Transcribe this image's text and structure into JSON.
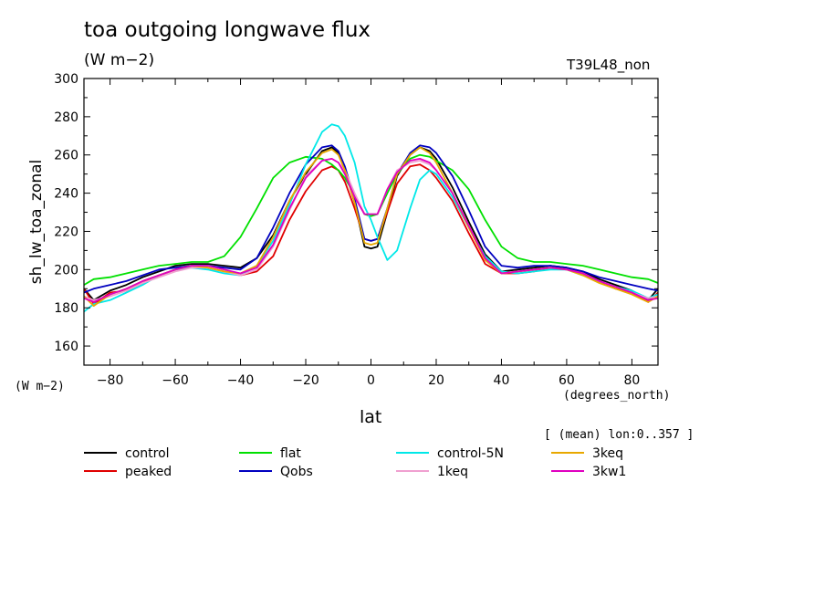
{
  "header": {
    "title": "toa outgoing longwave flux",
    "units": "(W m−2)",
    "run_id": "T39L48_non"
  },
  "axes": {
    "y_label": "sh_lw_toa_zonal",
    "y_units": "(W m−2)",
    "x_label": "lat",
    "x_units": "(degrees_north)",
    "mean_note": "[ (mean) lon:0..357 ]"
  },
  "chart_data": {
    "type": "line",
    "title": "toa outgoing longwave flux",
    "xlabel": "lat",
    "ylabel": "sh_lw_toa_zonal",
    "xlim": [
      -88,
      88
    ],
    "ylim": [
      150,
      300
    ],
    "x_ticks": [
      -80,
      -60,
      -40,
      -20,
      0,
      20,
      40,
      60,
      80
    ],
    "y_ticks": [
      160,
      180,
      200,
      220,
      240,
      260,
      280,
      300
    ],
    "x_tick_labels": [
      "−80",
      "−60",
      "−40",
      "−20",
      "0",
      "20",
      "40",
      "60",
      "80"
    ],
    "y_tick_labels": [
      "160",
      "180",
      "200",
      "220",
      "240",
      "260",
      "280",
      "300"
    ],
    "grid": false,
    "legend_position": "bottom",
    "series": [
      {
        "name": "control",
        "color": "#000000",
        "x": [
          -88,
          -85,
          -80,
          -75,
          -70,
          -65,
          -60,
          -55,
          -50,
          -45,
          -40,
          -35,
          -30,
          -25,
          -20,
          -15,
          -12,
          -10,
          -8,
          -5,
          -2,
          0,
          2,
          5,
          8,
          12,
          15,
          18,
          20,
          25,
          30,
          35,
          40,
          45,
          50,
          55,
          60,
          65,
          70,
          75,
          80,
          85,
          88
        ],
        "y": [
          190,
          184,
          189,
          192,
          196,
          199,
          202,
          203,
          203,
          202,
          201,
          206,
          218,
          236,
          250,
          262,
          264,
          261,
          252,
          235,
          212,
          211,
          212,
          230,
          249,
          260,
          264,
          262,
          258,
          243,
          225,
          208,
          199,
          200,
          201,
          202,
          201,
          199,
          195,
          192,
          189,
          184,
          190
        ]
      },
      {
        "name": "peaked",
        "color": "#e00000",
        "x": [
          -88,
          -85,
          -80,
          -75,
          -70,
          -65,
          -60,
          -55,
          -50,
          -45,
          -40,
          -35,
          -30,
          -25,
          -20,
          -15,
          -12,
          -10,
          -8,
          -5,
          -2,
          0,
          2,
          5,
          8,
          12,
          15,
          18,
          20,
          25,
          30,
          35,
          40,
          45,
          50,
          55,
          60,
          65,
          70,
          75,
          80,
          85,
          88
        ],
        "y": [
          190,
          182,
          188,
          189,
          193,
          197,
          200,
          202,
          201,
          199,
          197,
          199,
          207,
          226,
          241,
          252,
          254,
          252,
          246,
          232,
          216,
          215,
          216,
          230,
          245,
          254,
          255,
          252,
          248,
          236,
          219,
          203,
          198,
          198,
          199,
          201,
          201,
          198,
          194,
          190,
          188,
          183,
          188
        ]
      },
      {
        "name": "flat",
        "color": "#00e000",
        "x": [
          -88,
          -85,
          -80,
          -75,
          -70,
          -65,
          -60,
          -55,
          -50,
          -45,
          -40,
          -35,
          -30,
          -25,
          -20,
          -15,
          -12,
          -10,
          -8,
          -5,
          -2,
          0,
          2,
          5,
          8,
          12,
          15,
          18,
          20,
          25,
          30,
          35,
          40,
          45,
          50,
          55,
          60,
          65,
          70,
          75,
          80,
          85,
          88
        ],
        "y": [
          192,
          195,
          196,
          198,
          200,
          202,
          203,
          204,
          204,
          207,
          217,
          232,
          248,
          256,
          259,
          258,
          255,
          252,
          248,
          239,
          229,
          228,
          229,
          240,
          250,
          258,
          260,
          259,
          257,
          252,
          242,
          226,
          212,
          206,
          204,
          204,
          203,
          202,
          200,
          198,
          196,
          195,
          193
        ]
      },
      {
        "name": "Qobs",
        "color": "#0000c0",
        "x": [
          -88,
          -85,
          -80,
          -75,
          -70,
          -65,
          -60,
          -55,
          -50,
          -45,
          -40,
          -35,
          -30,
          -25,
          -20,
          -15,
          -12,
          -10,
          -8,
          -5,
          -2,
          0,
          2,
          5,
          8,
          12,
          15,
          18,
          20,
          25,
          30,
          35,
          40,
          45,
          50,
          55,
          60,
          65,
          70,
          75,
          80,
          85,
          88
        ],
        "y": [
          188,
          190,
          192,
          194,
          197,
          200,
          201,
          202,
          202,
          201,
          200,
          206,
          222,
          240,
          255,
          264,
          265,
          262,
          254,
          237,
          216,
          215,
          216,
          232,
          250,
          261,
          265,
          264,
          261,
          249,
          231,
          212,
          202,
          201,
          202,
          202,
          201,
          199,
          196,
          194,
          192,
          190,
          189
        ]
      },
      {
        "name": "control-5N",
        "color": "#00e8e8",
        "x": [
          -88,
          -85,
          -80,
          -75,
          -70,
          -65,
          -60,
          -55,
          -50,
          -45,
          -40,
          -35,
          -30,
          -25,
          -20,
          -15,
          -12,
          -10,
          -8,
          -5,
          -2,
          0,
          2,
          5,
          8,
          12,
          15,
          18,
          20,
          25,
          30,
          35,
          40,
          45,
          50,
          55,
          60,
          65,
          70,
          75,
          80,
          85,
          88
        ],
        "y": [
          178,
          182,
          184,
          188,
          192,
          197,
          200,
          201,
          200,
          198,
          197,
          202,
          215,
          234,
          255,
          272,
          276,
          275,
          270,
          256,
          233,
          226,
          217,
          205,
          210,
          232,
          247,
          252,
          250,
          238,
          222,
          207,
          199,
          198,
          199,
          200,
          200,
          197,
          194,
          191,
          189,
          185,
          187
        ]
      },
      {
        "name": "1keq",
        "color": "#f0a0d0",
        "x": [
          -88,
          -85,
          -80,
          -75,
          -70,
          -65,
          -60,
          -55,
          -50,
          -45,
          -40,
          -35,
          -30,
          -25,
          -20,
          -15,
          -12,
          -10,
          -8,
          -5,
          -2,
          0,
          2,
          5,
          8,
          12,
          15,
          18,
          20,
          25,
          30,
          35,
          40,
          45,
          50,
          55,
          60,
          65,
          70,
          75,
          80,
          85,
          88
        ],
        "y": [
          186,
          184,
          186,
          189,
          193,
          196,
          199,
          201,
          201,
          199,
          197,
          200,
          212,
          231,
          249,
          257,
          258,
          256,
          252,
          240,
          229,
          229,
          229,
          242,
          252,
          256,
          257,
          255,
          252,
          240,
          222,
          205,
          198,
          199,
          200,
          201,
          200,
          198,
          194,
          191,
          188,
          185,
          186
        ]
      },
      {
        "name": "3keq",
        "color": "#e8a800",
        "x": [
          -88,
          -85,
          -80,
          -75,
          -70,
          -65,
          -60,
          -55,
          -50,
          -45,
          -40,
          -35,
          -30,
          -25,
          -20,
          -15,
          -12,
          -10,
          -8,
          -5,
          -2,
          0,
          2,
          5,
          8,
          12,
          15,
          18,
          20,
          25,
          30,
          35,
          40,
          45,
          50,
          55,
          60,
          65,
          70,
          75,
          80,
          85,
          88
        ],
        "y": [
          186,
          181,
          187,
          190,
          194,
          197,
          200,
          202,
          201,
          199,
          198,
          202,
          217,
          236,
          251,
          261,
          263,
          260,
          252,
          235,
          214,
          213,
          214,
          232,
          250,
          260,
          264,
          261,
          256,
          240,
          222,
          205,
          198,
          199,
          200,
          201,
          200,
          197,
          193,
          190,
          187,
          183,
          186
        ]
      },
      {
        "name": "3kw1",
        "color": "#e000c0",
        "x": [
          -88,
          -85,
          -80,
          -75,
          -70,
          -65,
          -60,
          -55,
          -50,
          -45,
          -40,
          -35,
          -30,
          -25,
          -20,
          -15,
          -12,
          -10,
          -8,
          -5,
          -2,
          0,
          2,
          5,
          8,
          12,
          15,
          18,
          20,
          25,
          30,
          35,
          40,
          45,
          50,
          55,
          60,
          65,
          70,
          75,
          80,
          85,
          88
        ],
        "y": [
          185,
          183,
          187,
          190,
          194,
          197,
          200,
          202,
          202,
          200,
          198,
          201,
          213,
          232,
          248,
          257,
          258,
          256,
          250,
          238,
          229,
          229,
          229,
          242,
          251,
          257,
          258,
          256,
          252,
          240,
          223,
          206,
          198,
          199,
          200,
          201,
          200,
          198,
          194,
          191,
          188,
          184,
          185
        ]
      }
    ]
  }
}
